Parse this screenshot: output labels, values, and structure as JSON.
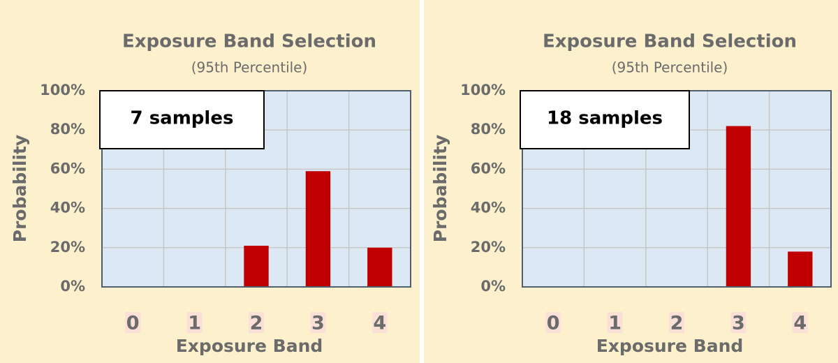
{
  "chart_data": [
    {
      "type": "bar",
      "title": "Exposure Band Selection",
      "subtitle": "(95th Percentile)",
      "x_label": "Exposure Band",
      "y_label": "Probability",
      "annotation": "7 samples",
      "categories": [
        "0",
        "1",
        "2",
        "3",
        "4"
      ],
      "values": [
        0,
        0,
        21,
        59,
        20
      ],
      "color": "#c00000",
      "ylim": [
        0,
        100
      ],
      "yticks": [
        {
          "value": 0,
          "label": "0%"
        },
        {
          "value": 20,
          "label": "20%"
        },
        {
          "value": 40,
          "label": "40%"
        },
        {
          "value": 60,
          "label": "60%"
        },
        {
          "value": 80,
          "label": "80%"
        },
        {
          "value": 100,
          "label": "100%"
        }
      ],
      "grid": true
    },
    {
      "type": "bar",
      "title": "Exposure Band Selection",
      "subtitle": "(95th Percentile)",
      "x_label": "Exposure Band",
      "y_label": "Probability",
      "annotation": "18 samples",
      "categories": [
        "0",
        "1",
        "2",
        "3",
        "4"
      ],
      "values": [
        0,
        0,
        0,
        82,
        18
      ],
      "color": "#c00000",
      "ylim": [
        0,
        100
      ],
      "yticks": [
        {
          "value": 0,
          "label": "0%"
        },
        {
          "value": 20,
          "label": "20%"
        },
        {
          "value": 40,
          "label": "40%"
        },
        {
          "value": 60,
          "label": "60%"
        },
        {
          "value": 80,
          "label": "80%"
        },
        {
          "value": 100,
          "label": "100%"
        }
      ],
      "grid": true
    }
  ]
}
